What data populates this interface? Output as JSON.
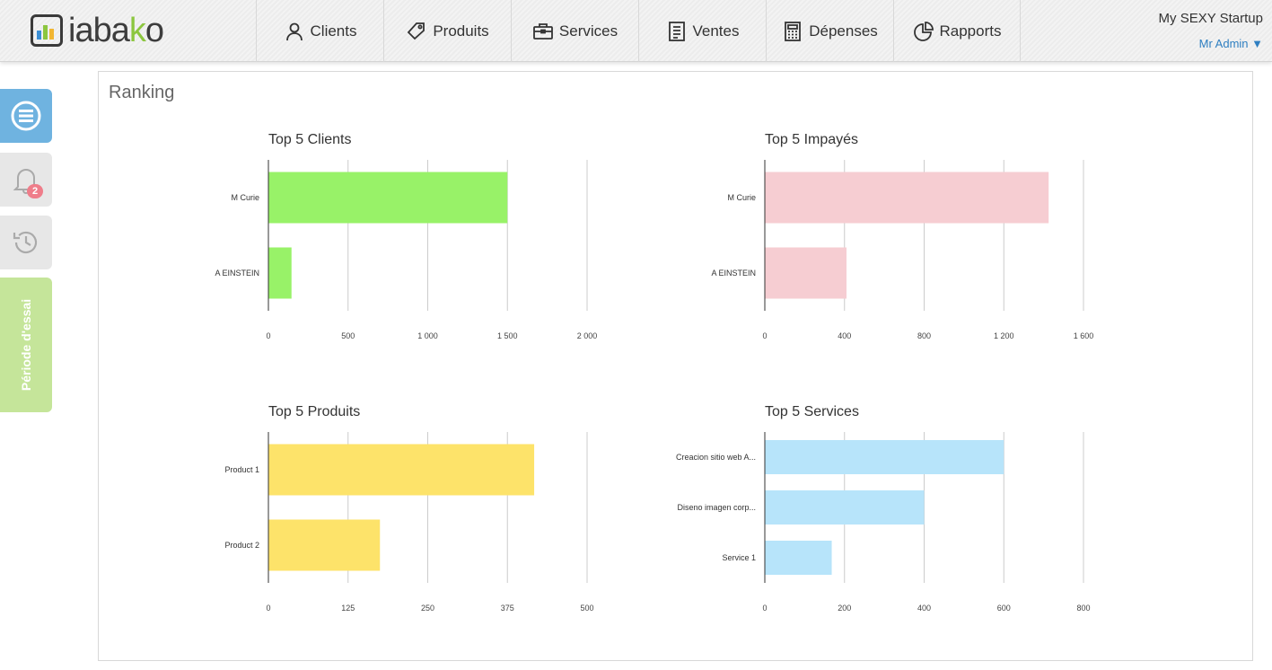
{
  "header": {
    "logo_text_a": "iaba",
    "logo_text_k": "k",
    "logo_text_o": "o",
    "nav": [
      {
        "label": "Clients",
        "icon": "user-icon"
      },
      {
        "label": "Produits",
        "icon": "tag-icon"
      },
      {
        "label": "Services",
        "icon": "briefcase-icon"
      },
      {
        "label": "Ventes",
        "icon": "document-icon"
      },
      {
        "label": "Dépenses",
        "icon": "calculator-icon"
      },
      {
        "label": "Rapports",
        "icon": "pie-chart-icon"
      }
    ],
    "company": "My SEXY Startup",
    "user": "Mr Admin ▼"
  },
  "sidebar": {
    "bell_badge": "2",
    "trial_label": "Période d'essai"
  },
  "panel": {
    "title": "Ranking"
  },
  "colors": {
    "clients": "#98f268",
    "impayes": "#f6cdd2",
    "produits": "#fde36a",
    "services": "#b7e4fa"
  },
  "chart_data": [
    {
      "type": "bar",
      "orientation": "horizontal",
      "title": "Top 5 Clients",
      "categories": [
        "M Curie",
        "A EINSTEIN"
      ],
      "values": [
        1500,
        145
      ],
      "xlim": [
        0,
        2000
      ],
      "ticks": [
        0,
        500,
        1000,
        1500,
        2000
      ],
      "tick_labels": [
        "0",
        "500",
        "1 000",
        "1 500",
        "2 000"
      ],
      "grid": true
    },
    {
      "type": "bar",
      "orientation": "horizontal",
      "title": "Top 5 Impayés",
      "categories": [
        "M Curie",
        "A EINSTEIN"
      ],
      "values": [
        1425,
        410
      ],
      "xlim": [
        0,
        1600
      ],
      "ticks": [
        0,
        400,
        800,
        1200,
        1600
      ],
      "tick_labels": [
        "0",
        "400",
        "800",
        "1 200",
        "1 600"
      ],
      "grid": true
    },
    {
      "type": "bar",
      "orientation": "horizontal",
      "title": "Top 5 Produits",
      "categories": [
        "Product 1",
        "Product 2"
      ],
      "values": [
        417,
        175
      ],
      "xlim": [
        0,
        500
      ],
      "ticks": [
        0,
        125,
        250,
        375,
        500
      ],
      "tick_labels": [
        "0",
        "125",
        "250",
        "375",
        "500"
      ],
      "grid": true
    },
    {
      "type": "bar",
      "orientation": "horizontal",
      "title": "Top 5 Services",
      "categories": [
        "Creacion sitio web A...",
        "Diseno imagen corp...",
        "Service 1"
      ],
      "values": [
        600,
        400,
        168
      ],
      "xlim": [
        0,
        800
      ],
      "ticks": [
        0,
        200,
        400,
        600,
        800
      ],
      "tick_labels": [
        "0",
        "200",
        "400",
        "600",
        "800"
      ],
      "grid": true
    }
  ]
}
